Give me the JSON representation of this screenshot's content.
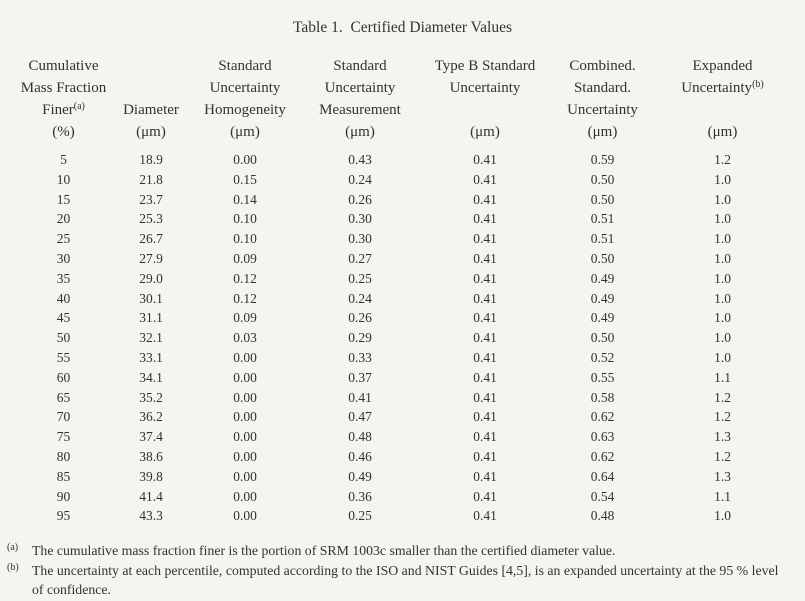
{
  "page": {
    "background_color": "#f5f4f1",
    "text_color": "#333231"
  },
  "table": {
    "title": "Table 1.  Certified Diameter Values",
    "header": {
      "col1": {
        "l1": "Cumulative",
        "l2": "Mass Fraction",
        "l3": "Finer",
        "l3_sup": "(a)",
        "l4": "(%)"
      },
      "col2": {
        "l3": "Diameter",
        "l4": "(μm)"
      },
      "col3": {
        "l1": "Standard",
        "l2": "Uncertainty",
        "l3": "Homogeneity",
        "l4": "(μm)"
      },
      "col4": {
        "l1": "Standard",
        "l2": "Uncertainty",
        "l3": "Measurement",
        "l4": "(μm)"
      },
      "col5": {
        "l1": "Type B Standard",
        "l2": "Uncertainty",
        "l4": "(μm)"
      },
      "col6": {
        "l1": "Combined.",
        "l2": "Standard.",
        "l3": "Uncertainty",
        "l4": "(μm)"
      },
      "col7": {
        "l1": "Expanded",
        "l2": "Uncertainty",
        "l2_sup": "(b)",
        "l4": "(μm)"
      }
    },
    "rows": [
      [
        "5",
        "18.9",
        "0.00",
        "0.43",
        "0.41",
        "0.59",
        "1.2"
      ],
      [
        "10",
        "21.8",
        "0.15",
        "0.24",
        "0.41",
        "0.50",
        "1.0"
      ],
      [
        "15",
        "23.7",
        "0.14",
        "0.26",
        "0.41",
        "0.50",
        "1.0"
      ],
      [
        "20",
        "25.3",
        "0.10",
        "0.30",
        "0.41",
        "0.51",
        "1.0"
      ],
      [
        "25",
        "26.7",
        "0.10",
        "0.30",
        "0.41",
        "0.51",
        "1.0"
      ],
      [
        "30",
        "27.9",
        "0.09",
        "0.27",
        "0.41",
        "0.50",
        "1.0"
      ],
      [
        "35",
        "29.0",
        "0.12",
        "0.25",
        "0.41",
        "0.49",
        "1.0"
      ],
      [
        "40",
        "30.1",
        "0.12",
        "0.24",
        "0.41",
        "0.49",
        "1.0"
      ],
      [
        "45",
        "31.1",
        "0.09",
        "0.26",
        "0.41",
        "0.49",
        "1.0"
      ],
      [
        "50",
        "32.1",
        "0.03",
        "0.29",
        "0.41",
        "0.50",
        "1.0"
      ],
      [
        "55",
        "33.1",
        "0.00",
        "0.33",
        "0.41",
        "0.52",
        "1.0"
      ],
      [
        "60",
        "34.1",
        "0.00",
        "0.37",
        "0.41",
        "0.55",
        "1.1"
      ],
      [
        "65",
        "35.2",
        "0.00",
        "0.41",
        "0.41",
        "0.58",
        "1.2"
      ],
      [
        "70",
        "36.2",
        "0.00",
        "0.47",
        "0.41",
        "0.62",
        "1.2"
      ],
      [
        "75",
        "37.4",
        "0.00",
        "0.48",
        "0.41",
        "0.63",
        "1.3"
      ],
      [
        "80",
        "38.6",
        "0.00",
        "0.46",
        "0.41",
        "0.62",
        "1.2"
      ],
      [
        "85",
        "39.8",
        "0.00",
        "0.49",
        "0.41",
        "0.64",
        "1.3"
      ],
      [
        "90",
        "41.4",
        "0.00",
        "0.36",
        "0.41",
        "0.54",
        "1.1"
      ],
      [
        "95",
        "43.3",
        "0.00",
        "0.25",
        "0.41",
        "0.48",
        "1.0"
      ]
    ]
  },
  "footnotes": [
    {
      "marker": "(a)",
      "text": "The cumulative mass fraction finer is the portion of SRM 1003c smaller than the certified diameter value."
    },
    {
      "marker": "(b)",
      "text": "The uncertainty at each percentile, computed according to the ISO and NIST Guides [4,5], is an expanded uncertainty at the 95 % level of confidence."
    }
  ]
}
